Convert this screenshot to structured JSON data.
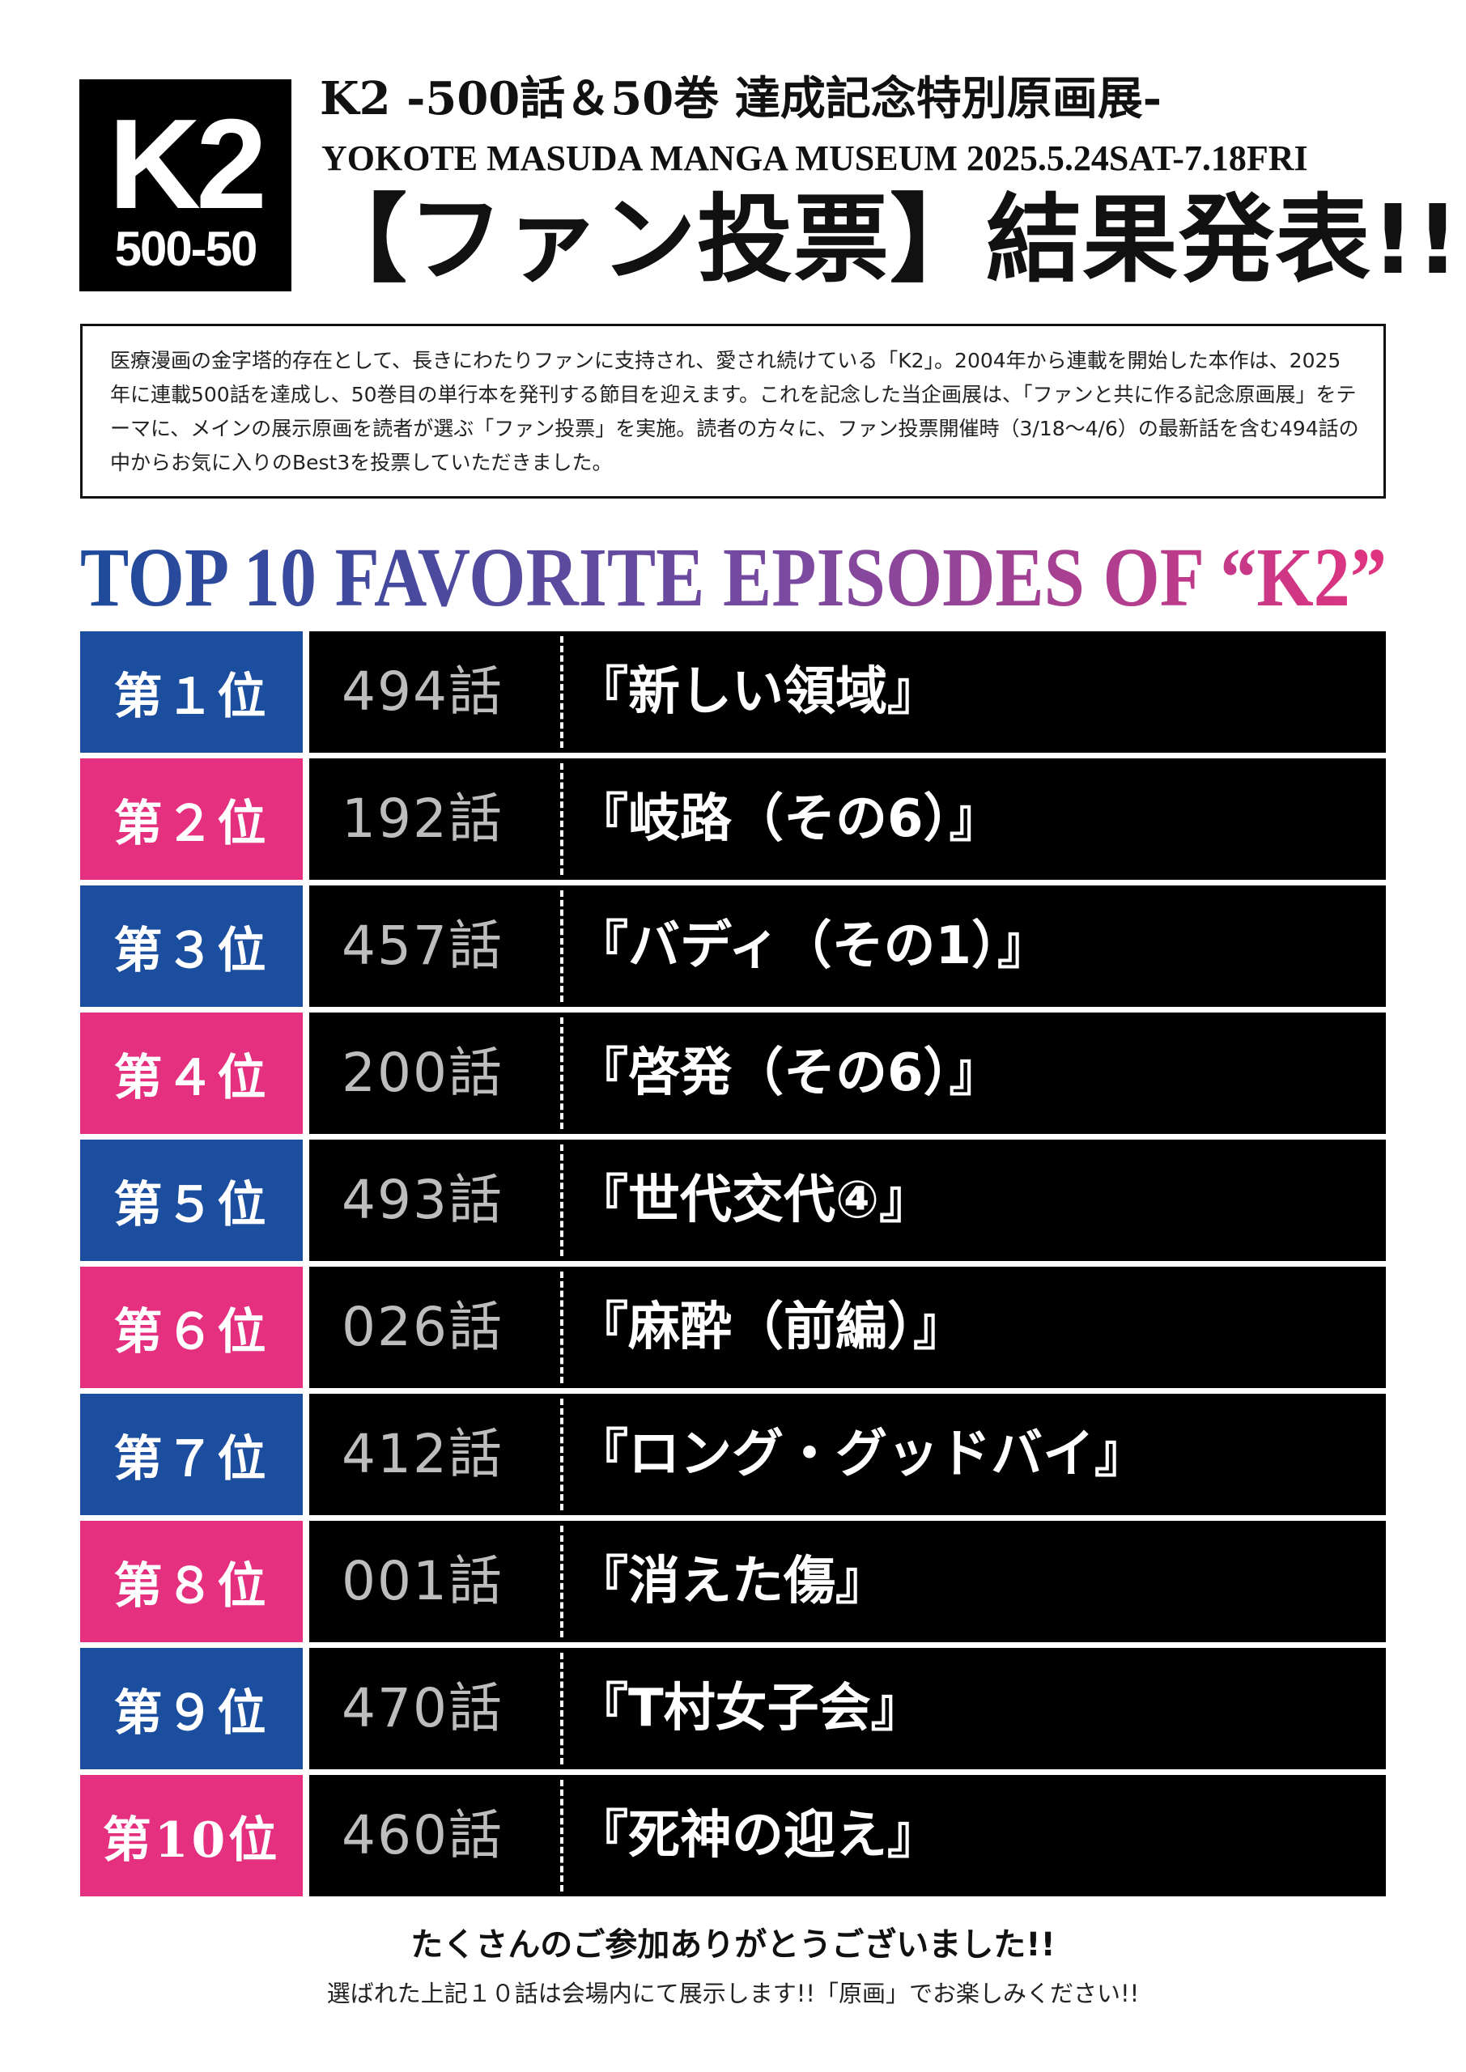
{
  "logo": {
    "main": "K2",
    "sub": "500-50"
  },
  "header": {
    "title": "K2 -500話＆50巻 達成記念特別原画展-",
    "subtitle": "YOKOTE MASUDA MANGA MUSEUM  2025.5.24SAT-7.18FRI",
    "main_heading": "【ファン投票】結果発表!!"
  },
  "intro": {
    "text": "医療漫画の金字塔的存在として、長きにわたりファンに支持され、愛され続けている「K2」。2004年から連載を開始した本作は、2025年に連載500話を達成し、50巻目の単行本を発刊する節目を迎えます。これを記念した当企画展は、「ファンと共に作る記念原画展」をテーマに、メインの展示原画を読者が選ぶ「ファン投票」を実施。読者の方々に、ファン投票開催時（3/18〜4/6）の最新話を含む494話の中からお気に入りのBest3を投票していただきました。"
  },
  "ranking_title": "TOP 10 FAVORITE EPISODES OF “K2”",
  "colors": {
    "blue": "#1c4ea0",
    "pink": "#e4307f",
    "title_gradient_start": "#1d4a9c",
    "title_gradient_mid": "#7b4aa0",
    "title_gradient_end": "#e0337f"
  },
  "ranking": [
    {
      "rank": "第１位",
      "episode": "494話",
      "title": "『新しい領域』",
      "color": "blue"
    },
    {
      "rank": "第２位",
      "episode": "192話",
      "title": "『岐路（その6）』",
      "color": "pink"
    },
    {
      "rank": "第３位",
      "episode": "457話",
      "title": "『バディ（その1）』",
      "color": "blue"
    },
    {
      "rank": "第４位",
      "episode": "200話",
      "title": "『啓発（その6）』",
      "color": "pink"
    },
    {
      "rank": "第５位",
      "episode": "493話",
      "title": "『世代交代④』",
      "color": "blue"
    },
    {
      "rank": "第６位",
      "episode": "026話",
      "title": "『麻酔（前編）』",
      "color": "pink"
    },
    {
      "rank": "第７位",
      "episode": "412話",
      "title": "『ロング・グッドバイ』",
      "color": "blue"
    },
    {
      "rank": "第８位",
      "episode": "001話",
      "title": "『消えた傷』",
      "color": "pink"
    },
    {
      "rank": "第９位",
      "episode": "470話",
      "title": "『T村女子会』",
      "color": "blue"
    },
    {
      "rank": "第10位",
      "episode": "460話",
      "title": "『死神の迎え』",
      "color": "pink"
    }
  ],
  "footer": {
    "thanks": "たくさんのご参加ありがとうございました!!",
    "note": "選ばれた上記１０話は会場内にて展示します!!「原画」でお楽しみください!!"
  }
}
